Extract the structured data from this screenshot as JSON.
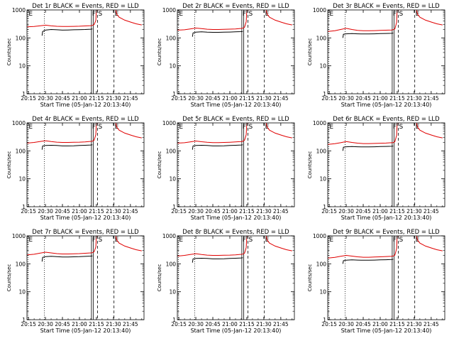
{
  "chart_data": {
    "type": "line",
    "common": {
      "xlabel": "Start Time (05-Jan-12 20:13:40)",
      "ylabel": "Counts/sec",
      "x_ticks": [
        "20:15",
        "20:30",
        "20:45",
        "21:00",
        "21:15",
        "21:30",
        "21:45"
      ],
      "x_tick_minutes": [
        15,
        30,
        45,
        60,
        75,
        90,
        105
      ],
      "xlim_minutes": [
        13.67,
        117
      ],
      "y_scale": "log",
      "ylim": [
        1,
        1000
      ],
      "y_ticks": [
        1,
        10,
        100,
        1000
      ],
      "y_tick_labels": [
        "1",
        "10",
        "100",
        "1000"
      ],
      "series_colors": {
        "events": "#000000",
        "lld": "#e00000"
      },
      "markers": [
        {
          "label": "E",
          "minute": 14.5,
          "style": "dotted"
        },
        {
          "label": "",
          "minute": 29,
          "style": "dotted"
        },
        {
          "label": "F",
          "minute": 70.6,
          "style": "solid"
        },
        {
          "label": "",
          "minute": 72.3,
          "style": "solid"
        },
        {
          "label": "S",
          "minute": 76,
          "style": "dashed"
        },
        {
          "label": "E",
          "minute": 90.5,
          "style": "dashed"
        }
      ]
    },
    "panels": [
      {
        "title": "Det 1r BLACK = Events, RED = LLD",
        "events": {
          "x": [
            27,
            27.5,
            30,
            35,
            40,
            45,
            50,
            55,
            60,
            65,
            70,
            71.5
          ],
          "y": [
            120,
            170,
            190,
            200,
            195,
            190,
            192,
            195,
            198,
            200,
            205,
            210
          ]
        },
        "lld": {
          "x": [
            14,
            20,
            25,
            30,
            35,
            40,
            45,
            50,
            55,
            60,
            65,
            70,
            71.5,
            73,
            74.5,
            75,
            76,
            78
          ],
          "y": [
            250,
            255,
            270,
            285,
            270,
            260,
            255,
            255,
            258,
            262,
            268,
            275,
            280,
            300,
            420,
            1000,
            1000,
            1000
          ]
        },
        "lld_tail": {
          "x": [
            92,
            93,
            95,
            100,
            105,
            110,
            115
          ],
          "y": [
            1000,
            700,
            550,
            430,
            370,
            320,
            290
          ]
        }
      },
      {
        "title": "Det 2r BLACK = Events, RED = LLD",
        "events": {
          "x": [
            27,
            27.5,
            30,
            35,
            40,
            45,
            50,
            55,
            60,
            65,
            70,
            71.5
          ],
          "y": [
            110,
            150,
            160,
            165,
            160,
            158,
            158,
            160,
            162,
            165,
            168,
            170
          ]
        },
        "lld": {
          "x": [
            14,
            20,
            25,
            30,
            35,
            40,
            45,
            50,
            55,
            60,
            65,
            70,
            71.5,
            73,
            74.5,
            75,
            76,
            78
          ],
          "y": [
            190,
            195,
            210,
            225,
            215,
            205,
            200,
            200,
            203,
            206,
            210,
            218,
            222,
            240,
            380,
            1000,
            1000,
            1000
          ]
        },
        "lld_tail": {
          "x": [
            92,
            93,
            95,
            100,
            105,
            110,
            115
          ],
          "y": [
            1000,
            700,
            550,
            430,
            370,
            320,
            290
          ]
        }
      },
      {
        "title": "Det 3r BLACK = Events, RED = LLD",
        "events": {
          "x": [
            27,
            27.5,
            30,
            35,
            40,
            45,
            50,
            55,
            60,
            65,
            70,
            71.5
          ],
          "y": [
            100,
            135,
            140,
            142,
            140,
            138,
            138,
            140,
            142,
            144,
            146,
            148
          ]
        },
        "lld": {
          "x": [
            14,
            20,
            25,
            30,
            35,
            40,
            45,
            50,
            55,
            60,
            65,
            70,
            71.5,
            73,
            74.5,
            75,
            76,
            78
          ],
          "y": [
            170,
            180,
            200,
            220,
            200,
            185,
            180,
            180,
            182,
            185,
            188,
            192,
            196,
            210,
            360,
            1000,
            1000,
            1000
          ]
        },
        "lld_tail": {
          "x": [
            92,
            93,
            95,
            100,
            105,
            110,
            115
          ],
          "y": [
            1000,
            700,
            550,
            430,
            370,
            320,
            290
          ]
        }
      },
      {
        "title": "Det 4r BLACK = Events, RED = LLD",
        "events": {
          "x": [
            27,
            27.5,
            30,
            35,
            40,
            45,
            50,
            55,
            60,
            65,
            70,
            71.5
          ],
          "y": [
            110,
            150,
            155,
            158,
            155,
            150,
            150,
            152,
            155,
            158,
            162,
            165
          ]
        },
        "lld": {
          "x": [
            14,
            20,
            25,
            30,
            35,
            40,
            45,
            50,
            55,
            60,
            65,
            70,
            71.5,
            73,
            74.5,
            75,
            76,
            78
          ],
          "y": [
            190,
            200,
            215,
            230,
            215,
            205,
            200,
            200,
            202,
            205,
            210,
            218,
            222,
            240,
            380,
            1000,
            1000,
            1000
          ]
        },
        "lld_tail": {
          "x": [
            92,
            93,
            95,
            100,
            105,
            110,
            115
          ],
          "y": [
            1000,
            700,
            550,
            430,
            370,
            320,
            290
          ]
        }
      },
      {
        "title": "Det 5r BLACK = Events, RED = LLD",
        "events": {
          "x": [
            27,
            27.5,
            30,
            35,
            40,
            45,
            50,
            55,
            60,
            65,
            70,
            71.5
          ],
          "y": [
            110,
            150,
            155,
            158,
            155,
            150,
            150,
            152,
            155,
            158,
            162,
            165
          ]
        },
        "lld": {
          "x": [
            14,
            20,
            25,
            30,
            35,
            40,
            45,
            50,
            55,
            60,
            65,
            70,
            71.5,
            73,
            74.5,
            75,
            76,
            78
          ],
          "y": [
            190,
            195,
            210,
            225,
            212,
            202,
            198,
            198,
            200,
            204,
            208,
            215,
            220,
            240,
            380,
            1000,
            1000,
            1000
          ]
        },
        "lld_tail": {
          "x": [
            92,
            93,
            95,
            100,
            105,
            110,
            115
          ],
          "y": [
            1000,
            700,
            550,
            430,
            370,
            320,
            290
          ]
        }
      },
      {
        "title": "Det 6r BLACK = Events, RED = LLD",
        "events": {
          "x": [
            27,
            27.5,
            30,
            35,
            40,
            45,
            50,
            55,
            60,
            65,
            70,
            71.5
          ],
          "y": [
            100,
            135,
            140,
            142,
            140,
            138,
            138,
            140,
            142,
            144,
            146,
            148
          ]
        },
        "lld": {
          "x": [
            14,
            20,
            25,
            30,
            35,
            40,
            45,
            50,
            55,
            60,
            65,
            70,
            71.5,
            73,
            74.5,
            75,
            76,
            78
          ],
          "y": [
            170,
            180,
            195,
            215,
            200,
            188,
            182,
            182,
            184,
            187,
            190,
            195,
            198,
            215,
            360,
            1000,
            1000,
            1000
          ]
        },
        "lld_tail": {
          "x": [
            92,
            93,
            95,
            100,
            105,
            110,
            115
          ],
          "y": [
            1000,
            700,
            550,
            430,
            370,
            320,
            290
          ]
        }
      },
      {
        "title": "Det 7r BLACK = Events, RED = LLD",
        "events": {
          "x": [
            27,
            27.5,
            30,
            35,
            40,
            45,
            50,
            55,
            60,
            65,
            70,
            71.5
          ],
          "y": [
            120,
            170,
            180,
            185,
            180,
            175,
            175,
            178,
            180,
            184,
            188,
            192
          ]
        },
        "lld": {
          "x": [
            14,
            20,
            25,
            30,
            35,
            40,
            45,
            50,
            55,
            60,
            65,
            70,
            71.5,
            73,
            74.5,
            75,
            76,
            78
          ],
          "y": [
            210,
            220,
            240,
            260,
            245,
            232,
            225,
            225,
            228,
            232,
            238,
            245,
            250,
            270,
            400,
            1000,
            1000,
            1000
          ]
        },
        "lld_tail": {
          "x": [
            92,
            93,
            95,
            100,
            105,
            110,
            115
          ],
          "y": [
            1000,
            700,
            550,
            430,
            370,
            320,
            290
          ]
        }
      },
      {
        "title": "Det 8r BLACK = Events, RED = LLD",
        "events": {
          "x": [
            27,
            27.5,
            30,
            35,
            40,
            45,
            50,
            55,
            60,
            65,
            70,
            71.5
          ],
          "y": [
            110,
            150,
            155,
            158,
            155,
            150,
            150,
            152,
            155,
            158,
            162,
            165
          ]
        },
        "lld": {
          "x": [
            14,
            20,
            25,
            30,
            35,
            40,
            45,
            50,
            55,
            60,
            65,
            70,
            71.5,
            73,
            74.5,
            75,
            76,
            78
          ],
          "y": [
            190,
            200,
            215,
            230,
            215,
            205,
            200,
            200,
            202,
            205,
            210,
            218,
            222,
            240,
            380,
            1000,
            1000,
            1000
          ]
        },
        "lld_tail": {
          "x": [
            92,
            93,
            95,
            100,
            105,
            110,
            115
          ],
          "y": [
            1000,
            700,
            550,
            430,
            370,
            320,
            290
          ]
        }
      },
      {
        "title": "Det 9r BLACK = Events, RED = LLD",
        "events": {
          "x": [
            27,
            27.5,
            30,
            35,
            40,
            45,
            50,
            55,
            60,
            65,
            70,
            71.5
          ],
          "y": [
            100,
            130,
            135,
            138,
            136,
            134,
            134,
            136,
            138,
            140,
            142,
            145
          ]
        },
        "lld": {
          "x": [
            14,
            20,
            25,
            30,
            35,
            40,
            45,
            50,
            55,
            60,
            65,
            70,
            71.5,
            73,
            74.5,
            75,
            76,
            78
          ],
          "y": [
            160,
            170,
            185,
            200,
            188,
            178,
            172,
            172,
            175,
            178,
            182,
            186,
            190,
            205,
            350,
            1000,
            1000,
            1000
          ]
        },
        "lld_tail": {
          "x": [
            92,
            93,
            95,
            100,
            105,
            110,
            115
          ],
          "y": [
            1000,
            700,
            550,
            430,
            370,
            320,
            290
          ]
        }
      }
    ]
  }
}
